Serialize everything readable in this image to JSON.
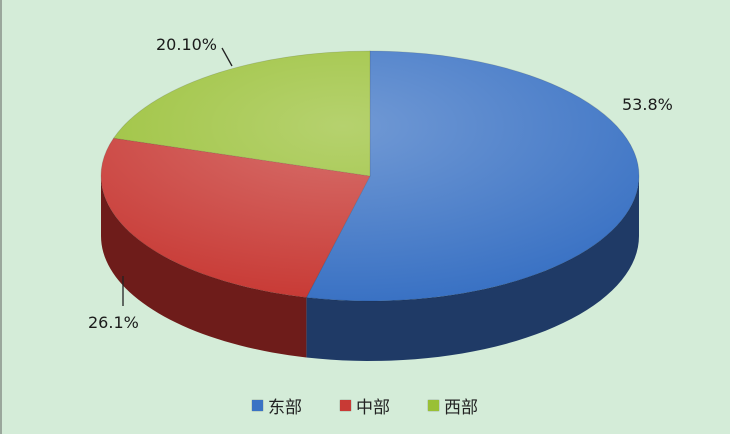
{
  "chart_data": {
    "type": "pie",
    "style": "3d",
    "title": "",
    "series": [
      {
        "name": "东部",
        "value": 53.8,
        "label": "53.8%",
        "color": "#3a72c4",
        "side": "#1f3a66"
      },
      {
        "name": "中部",
        "value": 26.1,
        "label": "26.1%",
        "color": "#c83a35",
        "side": "#6e1c1a"
      },
      {
        "name": "西部",
        "value": 20.1,
        "label": "20.10%",
        "color": "#99c036",
        "side": "#5b7a1c"
      }
    ],
    "legend_position": "bottom"
  }
}
